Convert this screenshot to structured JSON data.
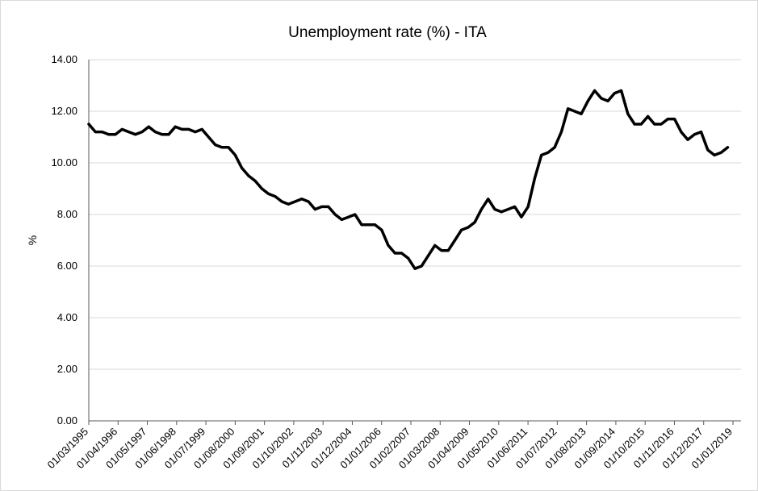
{
  "chart_data": {
    "type": "line",
    "title": "Unemployment rate (%) - ITA",
    "xlabel": "",
    "ylabel": "%",
    "ylim": [
      0,
      14
    ],
    "yticks": [
      "0.00",
      "2.00",
      "4.00",
      "6.00",
      "8.00",
      "10.00",
      "12.00",
      "14.00"
    ],
    "grid": true,
    "legend": "none",
    "line_color": "#000000",
    "x_tick_labels": [
      "01/03/1995",
      "01/04/1996",
      "01/05/1997",
      "01/06/1998",
      "01/07/1999",
      "01/08/2000",
      "01/09/2001",
      "01/10/2002",
      "01/11/2003",
      "01/12/2004",
      "01/01/2006",
      "01/02/2007",
      "01/03/2008",
      "01/04/2009",
      "01/05/2010",
      "01/06/2011",
      "01/07/2012",
      "01/08/2013",
      "01/09/2014",
      "01/10/2015",
      "01/11/2016",
      "01/12/2017",
      "01/01/2019"
    ],
    "series": [
      {
        "x": [
          "1995-03",
          "1995-06",
          "1995-09",
          "1995-12",
          "1996-03",
          "1996-06",
          "1996-09",
          "1996-12",
          "1997-03",
          "1997-06",
          "1997-09",
          "1997-12",
          "1998-03",
          "1998-06",
          "1998-09",
          "1998-12",
          "1999-03",
          "1999-06",
          "1999-09",
          "1999-12",
          "2000-03",
          "2000-06",
          "2000-09",
          "2000-12",
          "2001-03",
          "2001-06",
          "2001-09",
          "2001-12",
          "2002-03",
          "2002-06",
          "2002-09",
          "2002-12",
          "2003-03",
          "2003-06",
          "2003-09",
          "2003-12",
          "2004-03",
          "2004-06",
          "2004-09",
          "2004-12",
          "2005-03",
          "2005-06",
          "2005-09",
          "2005-12",
          "2006-03",
          "2006-06",
          "2006-09",
          "2006-12",
          "2007-03",
          "2007-06",
          "2007-09",
          "2007-12",
          "2008-03",
          "2008-06",
          "2008-09",
          "2008-12",
          "2009-03",
          "2009-06",
          "2009-09",
          "2009-12",
          "2010-03",
          "2010-06",
          "2010-09",
          "2010-12",
          "2011-03",
          "2011-06",
          "2011-09",
          "2011-12",
          "2012-03",
          "2012-06",
          "2012-09",
          "2012-12",
          "2013-03",
          "2013-06",
          "2013-09",
          "2013-12",
          "2014-03",
          "2014-06",
          "2014-09",
          "2014-12",
          "2015-03",
          "2015-06",
          "2015-09",
          "2015-12",
          "2016-03",
          "2016-06",
          "2016-09",
          "2016-12",
          "2017-03",
          "2017-06",
          "2017-09",
          "2017-12",
          "2018-03",
          "2018-06",
          "2018-09",
          "2018-12",
          "2019-03",
          "2019-06",
          "2019-09"
        ],
        "values": [
          11.5,
          11.2,
          11.2,
          11.1,
          11.1,
          11.3,
          11.2,
          11.1,
          11.2,
          11.4,
          11.2,
          11.1,
          11.1,
          11.4,
          11.3,
          11.3,
          11.2,
          11.3,
          11.0,
          10.7,
          10.6,
          10.6,
          10.3,
          9.8,
          9.5,
          9.3,
          9.0,
          8.8,
          8.7,
          8.5,
          8.4,
          8.5,
          8.6,
          8.5,
          8.2,
          8.3,
          8.3,
          8.0,
          7.8,
          7.9,
          8.0,
          7.6,
          7.6,
          7.6,
          7.4,
          6.8,
          6.5,
          6.5,
          6.3,
          5.9,
          6.0,
          6.4,
          6.8,
          6.6,
          6.6,
          7.0,
          7.4,
          7.5,
          7.7,
          8.2,
          8.6,
          8.2,
          8.1,
          8.2,
          8.3,
          7.9,
          8.3,
          9.4,
          10.3,
          10.4,
          10.6,
          11.2,
          12.1,
          12.0,
          11.9,
          12.4,
          12.8,
          12.5,
          12.4,
          12.7,
          12.8,
          11.9,
          11.5,
          11.5,
          11.8,
          11.5,
          11.5,
          11.7,
          11.7,
          11.2,
          10.9,
          11.1,
          11.2,
          10.5,
          10.3,
          10.4,
          10.6,
          null,
          null
        ]
      }
    ]
  }
}
